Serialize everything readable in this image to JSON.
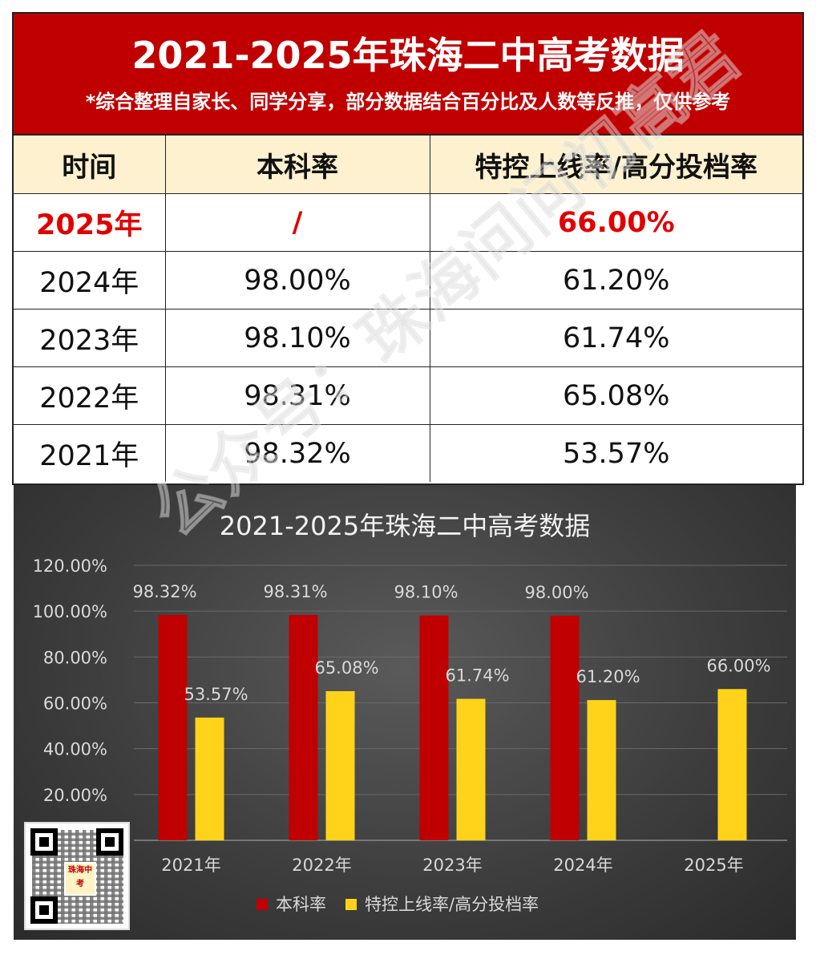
{
  "header": {
    "title": "2021-2025年珠海二中高考数据",
    "subtitle": "*综合整理自家长、同学分享，部分数据结合百分比及人数等反推，仅供参考"
  },
  "table": {
    "columns": [
      "时间",
      "本科率",
      "特控上线率/高分投档率"
    ],
    "rows": [
      {
        "year": "2025年",
        "undergrad": "/",
        "top": "66.00%"
      },
      {
        "year": "2024年",
        "undergrad": "98.00%",
        "top": "61.20%"
      },
      {
        "year": "2023年",
        "undergrad": "98.10%",
        "top": "61.74%"
      },
      {
        "year": "2022年",
        "undergrad": "98.31%",
        "top": "65.08%"
      },
      {
        "year": "2021年",
        "undergrad": "98.32%",
        "top": "53.57%"
      }
    ]
  },
  "watermark": "公众号：珠海问问初高君",
  "qr": {
    "logo_text": "珠海中考"
  },
  "colors": {
    "banner": "#c00000",
    "header_fill": "#fdf1cf",
    "highlight_text": "#e00000",
    "series_undergrad": "#c00000",
    "series_top": "#ffd31a"
  },
  "chart_data": {
    "type": "bar",
    "title": "2021-2025年珠海二中高考数据",
    "categories": [
      "2021年",
      "2022年",
      "2023年",
      "2024年",
      "2025年"
    ],
    "series": [
      {
        "name": "本科率",
        "values": [
          98.32,
          98.31,
          98.1,
          98.0,
          null
        ],
        "labels": [
          "98.32%",
          "98.31%",
          "98.10%",
          "98.00%",
          ""
        ]
      },
      {
        "name": "特控上线率/高分投档率",
        "values": [
          53.57,
          65.08,
          61.74,
          61.2,
          66.0
        ],
        "labels": [
          "53.57%",
          "65.08%",
          "61.74%",
          "61.20%",
          "66.00%"
        ]
      }
    ],
    "ylim": [
      0,
      120
    ],
    "yticks": [
      "20.00%",
      "40.00%",
      "60.00%",
      "80.00%",
      "100.00%",
      "120.00%"
    ],
    "ytick_values": [
      20,
      40,
      60,
      80,
      100,
      120
    ],
    "grid": true,
    "legend": "bottom"
  }
}
